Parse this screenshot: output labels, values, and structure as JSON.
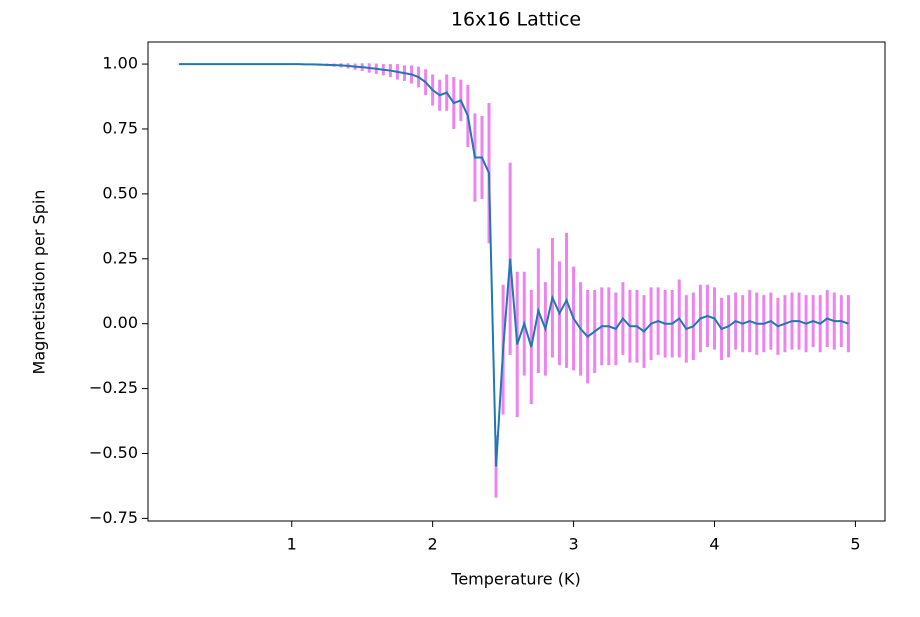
{
  "chart_data": {
    "type": "errorbar_line",
    "title": "16x16 Lattice",
    "x_label": "Temperature (K)",
    "y_label": "Magnetisation per Spin",
    "x": [
      0.2,
      0.25,
      0.3,
      0.35,
      0.4,
      0.45,
      0.5,
      0.55,
      0.6,
      0.65,
      0.7,
      0.75,
      0.8,
      0.85,
      0.9,
      0.95,
      1.0,
      1.05,
      1.1,
      1.15,
      1.2,
      1.25,
      1.3,
      1.35,
      1.4,
      1.45,
      1.5,
      1.55,
      1.6,
      1.65,
      1.7,
      1.75,
      1.8,
      1.85,
      1.9,
      1.95,
      2.0,
      2.05,
      2.1,
      2.15,
      2.2,
      2.25,
      2.3,
      2.35,
      2.4,
      2.45,
      2.5,
      2.55,
      2.6,
      2.65,
      2.7,
      2.75,
      2.8,
      2.85,
      2.9,
      2.95,
      3.0,
      3.05,
      3.1,
      3.15,
      3.2,
      3.25,
      3.3,
      3.35,
      3.4,
      3.45,
      3.5,
      3.55,
      3.6,
      3.65,
      3.7,
      3.75,
      3.8,
      3.85,
      3.9,
      3.95,
      4.0,
      4.05,
      4.1,
      4.15,
      4.2,
      4.25,
      4.3,
      4.35,
      4.4,
      4.45,
      4.5,
      4.55,
      4.6,
      4.65,
      4.7,
      4.75,
      4.8,
      4.85,
      4.9,
      4.95
    ],
    "values": [
      1.0,
      1.0,
      1.0,
      1.0,
      1.0,
      1.0,
      1.0,
      1.0,
      1.0,
      1.0,
      1.0,
      1.0,
      1.0,
      1.0,
      1.0,
      1.0,
      1.0,
      1.0,
      0.999,
      0.999,
      0.998,
      0.997,
      0.996,
      0.995,
      0.993,
      0.99,
      0.988,
      0.985,
      0.982,
      0.978,
      0.975,
      0.97,
      0.965,
      0.96,
      0.95,
      0.93,
      0.9,
      0.88,
      0.89,
      0.85,
      0.86,
      0.8,
      0.64,
      0.64,
      0.58,
      -0.55,
      -0.1,
      0.25,
      -0.08,
      0.0,
      -0.09,
      0.05,
      -0.02,
      0.1,
      0.04,
      0.09,
      0.02,
      -0.02,
      -0.05,
      -0.03,
      -0.01,
      -0.01,
      -0.02,
      0.02,
      -0.01,
      -0.01,
      -0.03,
      0.0,
      0.01,
      0.0,
      0.0,
      0.02,
      -0.02,
      -0.01,
      0.02,
      0.03,
      0.02,
      -0.02,
      -0.01,
      0.01,
      0.0,
      0.01,
      0.0,
      0.0,
      0.01,
      -0.01,
      0.0,
      0.01,
      0.01,
      0.0,
      0.01,
      0.0,
      0.02,
      0.01,
      0.01,
      0.0
    ],
    "errors": [
      0.001,
      0.001,
      0.001,
      0.001,
      0.001,
      0.001,
      0.001,
      0.001,
      0.001,
      0.001,
      0.001,
      0.001,
      0.001,
      0.001,
      0.001,
      0.001,
      0.001,
      0.002,
      0.002,
      0.003,
      0.004,
      0.005,
      0.006,
      0.008,
      0.01,
      0.012,
      0.015,
      0.018,
      0.02,
      0.022,
      0.025,
      0.03,
      0.03,
      0.035,
      0.04,
      0.05,
      0.06,
      0.06,
      0.07,
      0.1,
      0.08,
      0.12,
      0.17,
      0.16,
      0.27,
      0.12,
      0.25,
      0.37,
      0.28,
      0.2,
      0.22,
      0.24,
      0.18,
      0.23,
      0.2,
      0.26,
      0.2,
      0.18,
      0.18,
      0.16,
      0.15,
      0.15,
      0.14,
      0.14,
      0.14,
      0.14,
      0.14,
      0.14,
      0.13,
      0.13,
      0.13,
      0.15,
      0.13,
      0.13,
      0.13,
      0.12,
      0.12,
      0.12,
      0.12,
      0.11,
      0.11,
      0.12,
      0.12,
      0.11,
      0.11,
      0.11,
      0.11,
      0.11,
      0.11,
      0.11,
      0.1,
      0.11,
      0.11,
      0.11,
      0.1,
      0.11
    ],
    "color": "#1f77b4",
    "error_color": "#ee82ee",
    "xlim": [
      -0.02,
      5.21
    ],
    "ylim": [
      -0.76,
      1.085
    ],
    "xticks": [
      1,
      2,
      3,
      4,
      5
    ],
    "yticks": [
      {
        "value": -0.75,
        "label": "−0.75"
      },
      {
        "value": -0.5,
        "label": "−0.50"
      },
      {
        "value": -0.25,
        "label": "−0.25"
      },
      {
        "value": 0,
        "label": "0.00"
      },
      {
        "value": 0.25,
        "label": "0.25"
      },
      {
        "value": 0.5,
        "label": "0.50"
      },
      {
        "value": 0.75,
        "label": "0.75"
      },
      {
        "value": 1,
        "label": "1.00"
      }
    ]
  }
}
